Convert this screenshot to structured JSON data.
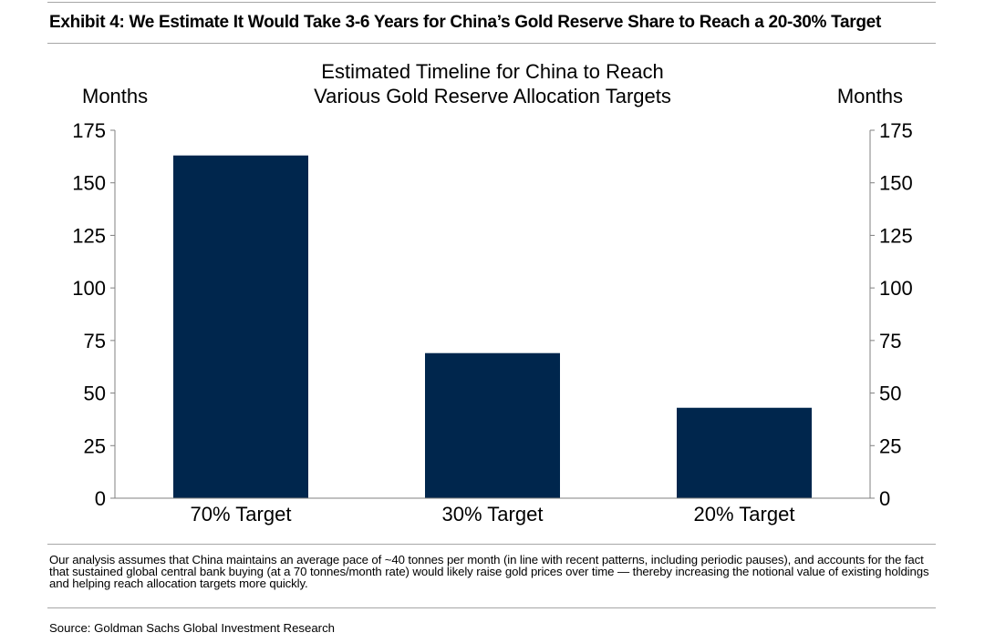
{
  "header": {
    "exhibit_title": "Exhibit 4: We Estimate It Would Take 3-6 Years for China’s Gold Reserve Share to Reach a 20-30% Target"
  },
  "chart_data": {
    "type": "bar",
    "title_lines": [
      "Estimated Timeline for China to Reach",
      "Various Gold Reserve Allocation Targets"
    ],
    "ylabel_left": "Months",
    "ylabel_right": "Months",
    "categories": [
      "70% Target",
      "30% Target",
      "20% Target"
    ],
    "values": [
      163,
      69,
      43
    ],
    "ylim": [
      0,
      175
    ],
    "yticks": [
      0,
      25,
      50,
      75,
      100,
      125,
      150,
      175
    ],
    "bar_color": "#00264d",
    "grid": false,
    "legend": "none"
  },
  "footer": {
    "note": "Our analysis assumes that China maintains an average pace of  ~40 tonnes per month (in line with recent patterns, including periodic pauses), and accounts for the fact that sustained global central bank buying (at a 70 tonnes/month rate) would likely raise gold prices over time — thereby increasing the notional value of existing holdings and helping reach allocation targets more quickly.",
    "source": "Source: Goldman Sachs Global Investment Research"
  }
}
